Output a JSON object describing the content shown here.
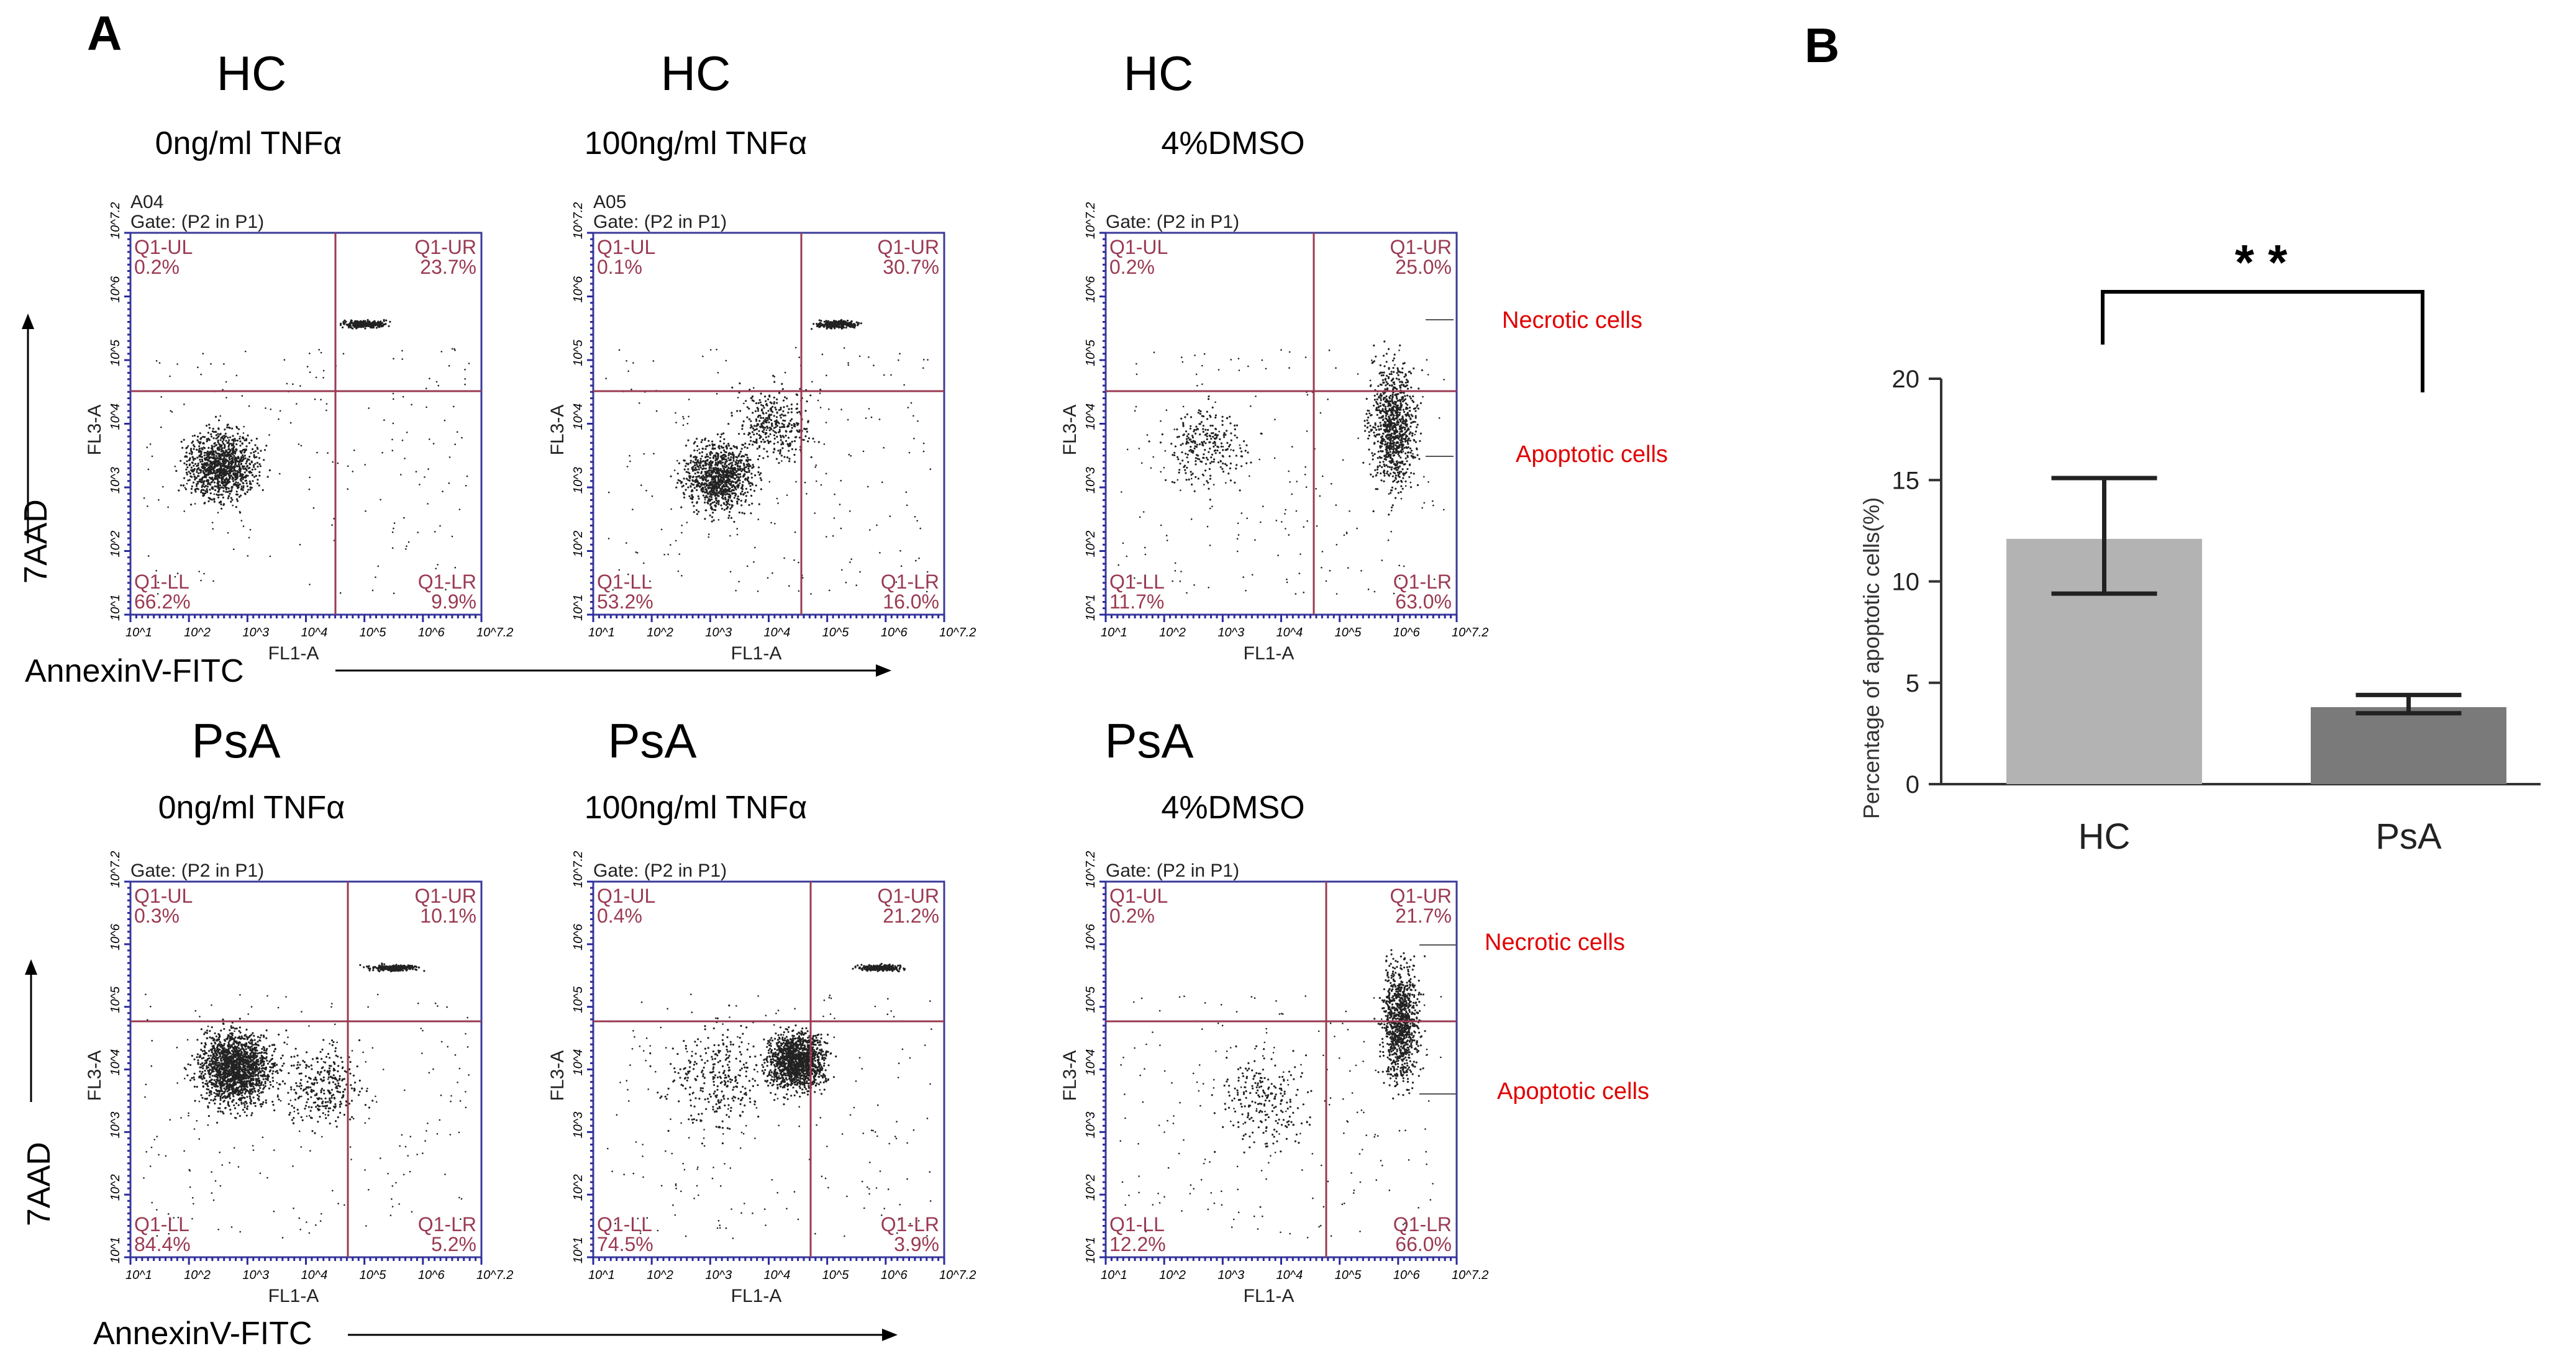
{
  "panel_labels": {
    "a": "A",
    "b": "B"
  },
  "axis_arrows": {
    "y_label": "7AAD",
    "x_label": "AnnexinV-FITC"
  },
  "annotations": {
    "necrotic": "Necrotic cells",
    "apoptotic": "Apoptotic cells"
  },
  "decades": [
    "10^1",
    "10^2",
    "10^3",
    "10^4",
    "10^5",
    "10^6",
    "10^7.2"
  ],
  "quadrant_names": {
    "ul": "Q1-UL",
    "ur": "Q1-UR",
    "ll": "Q1-LL",
    "lr": "Q1-LR"
  },
  "flow_axis": {
    "x": "FL1-A",
    "y": "FL3-A"
  },
  "chart_data": [
    {
      "type": "scatter",
      "description_id": "flow-panels",
      "gate_text": "Gate: (P2 in P1)",
      "panels": [
        {
          "group": "HC",
          "condition": "0ng/ml TNFα",
          "sample_id": "A04",
          "ul": "0.2%",
          "ur": "23.7%",
          "ll": "66.2%",
          "lr": "9.9%"
        },
        {
          "group": "HC",
          "condition": "100ng/ml TNFα",
          "sample_id": "A05",
          "ul": "0.1%",
          "ur": "30.7%",
          "ll": "53.2%",
          "lr": "16.0%"
        },
        {
          "group": "HC",
          "condition": "4%DMSO",
          "sample_id": "",
          "ul": "0.2%",
          "ur": "25.0%",
          "ll": "11.7%",
          "lr": "63.0%"
        },
        {
          "group": "PsA",
          "condition": "0ng/ml TNFα",
          "sample_id": "",
          "ul": "0.3%",
          "ur": "10.1%",
          "ll": "84.4%",
          "lr": "5.2%"
        },
        {
          "group": "PsA",
          "condition": "100ng/ml TNFα",
          "sample_id": "",
          "ul": "0.4%",
          "ur": "21.2%",
          "ll": "74.5%",
          "lr": "3.9%"
        },
        {
          "group": "PsA",
          "condition": "4%DMSO",
          "sample_id": "",
          "ul": "0.2%",
          "ur": "21.7%",
          "ll": "12.2%",
          "lr": "66.0%"
        }
      ]
    },
    {
      "type": "bar",
      "categories": [
        "HC",
        "PsA"
      ],
      "values": [
        12.1,
        3.8
      ],
      "error_low": [
        9.4,
        3.5
      ],
      "error_high": [
        15.1,
        4.4
      ],
      "colors": [
        "#b3b3b3",
        "#7a7a7a"
      ],
      "ylabel": "Percentage of apoptotic cells(%)",
      "ylim": [
        0,
        20
      ],
      "yticks": [
        "0",
        "5",
        "10",
        "15",
        "20"
      ],
      "significance": "* *"
    }
  ]
}
